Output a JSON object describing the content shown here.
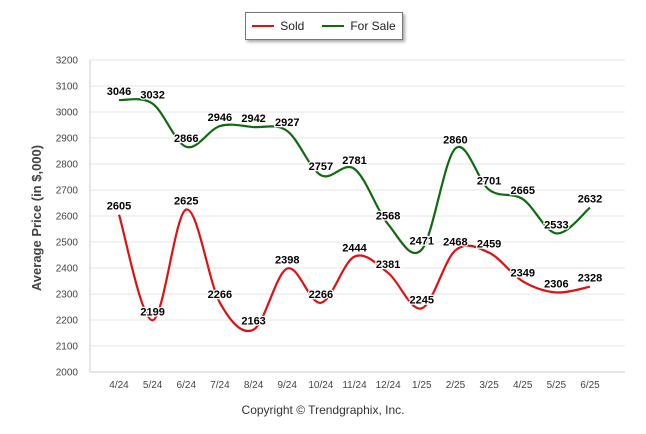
{
  "chart_data": {
    "type": "line",
    "ylabel": "Average Price (in $,000)",
    "xlabel": "",
    "ylim": [
      2000,
      3200
    ],
    "yticks": [
      2000,
      2100,
      2200,
      2300,
      2400,
      2500,
      2600,
      2700,
      2800,
      2900,
      3000,
      3100,
      3200
    ],
    "categories": [
      "4/24",
      "5/24",
      "6/24",
      "7/24",
      "8/24",
      "9/24",
      "10/24",
      "11/24",
      "12/24",
      "1/25",
      "2/25",
      "3/25",
      "4/25",
      "5/25",
      "6/25"
    ],
    "series": [
      {
        "name": "Sold",
        "color": "#e01010",
        "values": [
          2605,
          2199,
          2625,
          2266,
          2163,
          2398,
          2266,
          2444,
          2381,
          2245,
          2468,
          2459,
          2349,
          2306,
          2328
        ]
      },
      {
        "name": "For Sale",
        "color": "#0f6b0f",
        "values": [
          3046,
          3032,
          2866,
          2946,
          2942,
          2927,
          2757,
          2781,
          2568,
          2471,
          2860,
          2701,
          2665,
          2533,
          2632
        ]
      }
    ],
    "legend_position": "top-center",
    "grid": true
  },
  "footer": {
    "copyright": "Copyright © Trendgraphix, Inc."
  }
}
